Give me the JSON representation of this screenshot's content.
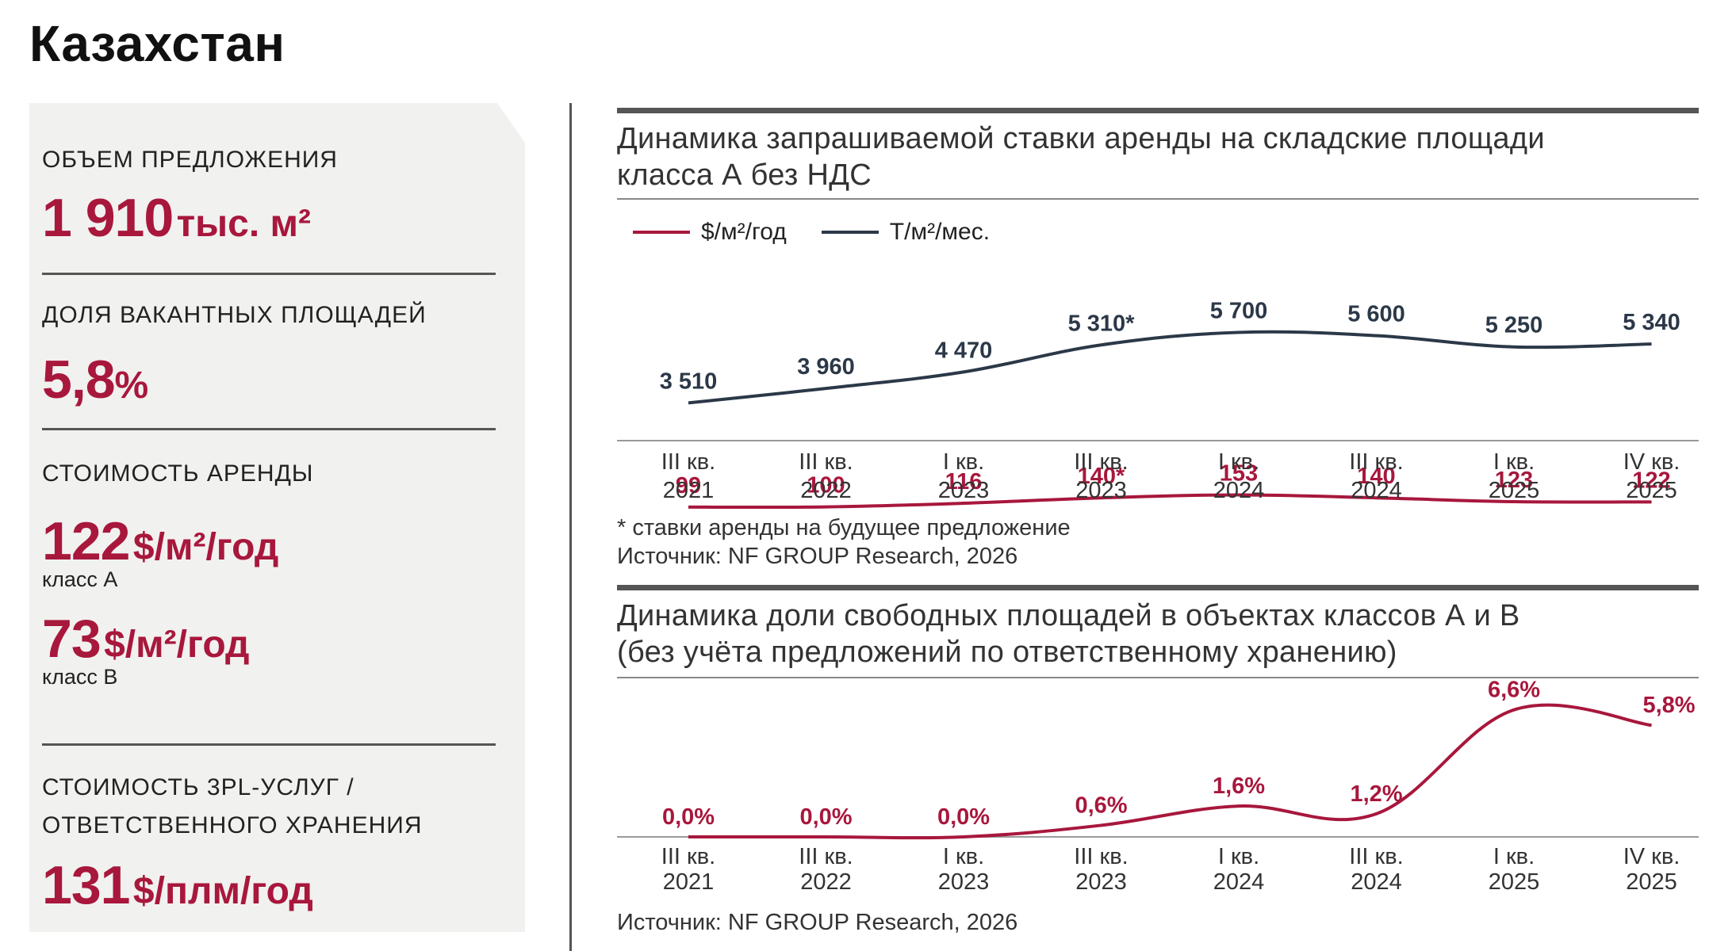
{
  "page": {
    "title": "Казахстан"
  },
  "stats": {
    "supply_label": "ОБЪЕМ ПРЕДЛОЖЕНИЯ",
    "supply_value": "1 910",
    "supply_unit": "тыс. м²",
    "vacancy_label": "ДОЛЯ ВАКАНТНЫХ ПЛОЩАДЕЙ",
    "vacancy_value": "5,8",
    "vacancy_unit": "%",
    "rent_label": "СТОИМОСТЬ АРЕНДЫ",
    "rent_a_value": "122",
    "rent_a_unit": "$/м²/год",
    "rent_a_class": "класс А",
    "rent_b_value": "73",
    "rent_b_unit": "$/м²/год",
    "rent_b_class": "класс В",
    "pl3_label_1": "СТОИМОСТЬ 3PL-УСЛУГ /",
    "pl3_label_2": "ОТВЕТСТВЕННОГО ХРАНЕНИЯ",
    "pl3_value": "131",
    "pl3_unit": "$/плм/год"
  },
  "colors": {
    "accent": "#a8173c",
    "navy": "#2b3848",
    "panel": "#f1f1ef"
  },
  "chart_data": [
    {
      "type": "line",
      "title_line1": "Динамика запрашиваемой ставки аренды на складские площади",
      "title_line2": "класса А без НДС",
      "categories": [
        [
          "III кв.",
          "2021"
        ],
        [
          "III кв.",
          "2022"
        ],
        [
          "I кв.",
          "2023"
        ],
        [
          "III кв.",
          "2023"
        ],
        [
          "I кв.",
          "2024"
        ],
        [
          "III кв.",
          "2024"
        ],
        [
          "I кв.",
          "2025"
        ],
        [
          "IV кв.",
          "2025"
        ]
      ],
      "series": [
        {
          "name": "$/м²/год",
          "color": "#a8173c",
          "values": [
            99,
            100,
            116,
            140,
            153,
            140,
            123,
            122
          ],
          "labels": [
            "99",
            "100",
            "116",
            "140*",
            "153",
            "140",
            "123",
            "122"
          ],
          "ylim": [
            60,
            1200
          ]
        },
        {
          "name": "Т/м²/мес.",
          "color": "#2b3848",
          "values": [
            3510,
            3960,
            4470,
            5310,
            5700,
            5600,
            5250,
            5340
          ],
          "labels": [
            "3 510",
            "3 960",
            "4 470",
            "5 310*",
            "5 700",
            "5 600",
            "5 250",
            "5 340"
          ],
          "ylim": [
            0,
            8000
          ]
        }
      ],
      "footnote": "* ставки аренды на будущее предложение",
      "source": "Источник: NF GROUP Research, 2026"
    },
    {
      "type": "line",
      "title_line1": "Динамика доли свободных площадей в объектах классов А и В",
      "title_line2": "(без учёта предложений по ответственному хранению)",
      "categories": [
        [
          "III кв.",
          "2021"
        ],
        [
          "III кв.",
          "2022"
        ],
        [
          "I кв.",
          "2023"
        ],
        [
          "III кв.",
          "2023"
        ],
        [
          "I кв.",
          "2024"
        ],
        [
          "III кв.",
          "2024"
        ],
        [
          "I кв.",
          "2025"
        ],
        [
          "IV кв.",
          "2025"
        ]
      ],
      "series": [
        {
          "name": "Доля свободных площадей",
          "color": "#a8173c",
          "values": [
            0.0,
            0.0,
            0.0,
            0.6,
            1.6,
            1.2,
            6.6,
            5.8
          ],
          "labels": [
            "0,0%",
            "0,0%",
            "0,0%",
            "0,6%",
            "1,6%",
            "1,2%",
            "6,6%",
            "5,8%"
          ],
          "ylim": [
            0,
            7
          ]
        }
      ],
      "source": "Источник: NF GROUP Research, 2026"
    }
  ]
}
